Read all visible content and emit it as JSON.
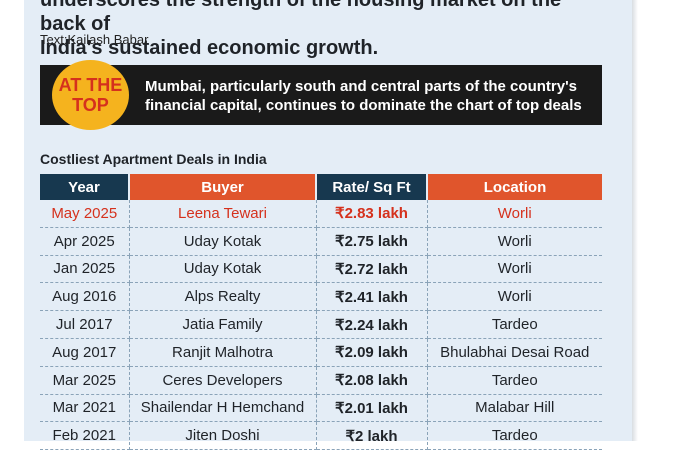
{
  "article": {
    "intro_line1": "underscores the strength of the housing market on the back of",
    "intro_line2": "India's sustained economic growth.",
    "credit": "Text:Kailash Babar"
  },
  "banner": {
    "badge_line1": "AT THE",
    "badge_line2": "TOP",
    "text": "Mumbai, particularly south and central parts of the country's financial capital, continues to dominate the chart of top deals"
  },
  "table": {
    "title": "Costliest Apartment Deals in India",
    "headers": {
      "year": "Year",
      "buyer": "Buyer",
      "rate": "Rate/ Sq Ft",
      "location": "Location"
    },
    "rows": [
      {
        "year": "May 2025",
        "buyer": "Leena Tewari",
        "rate": "₹2.83 lakh",
        "location": "Worli"
      },
      {
        "year": "Apr 2025",
        "buyer": "Uday Kotak",
        "rate": "₹2.75 lakh",
        "location": "Worli"
      },
      {
        "year": "Jan 2025",
        "buyer": "Uday Kotak",
        "rate": "₹2.72 lakh",
        "location": "Worli"
      },
      {
        "year": "Aug 2016",
        "buyer": "Alps Realty",
        "rate": "₹2.41 lakh",
        "location": "Worli"
      },
      {
        "year": "Jul 2017",
        "buyer": "Jatia Family",
        "rate": "₹2.24 lakh",
        "location": "Tardeo"
      },
      {
        "year": "Aug 2017",
        "buyer": "Ranjit Malhotra",
        "rate": "₹2.09 lakh",
        "location": "Bhulabhai Desai Road"
      },
      {
        "year": "Mar 2025",
        "buyer": "Ceres Developers",
        "rate": "₹2.08 lakh",
        "location": "Tardeo"
      },
      {
        "year": "Mar 2021",
        "buyer": "Shailendar H Hemchand",
        "rate": "₹2.01 lakh",
        "location": "Malabar Hill"
      },
      {
        "year": "Feb 2021",
        "buyer": "Jiten Doshi",
        "rate": "₹2 lakh",
        "location": "Tardeo"
      }
    ]
  },
  "colors": {
    "header_dark": "#17384f",
    "header_orange": "#e0552c",
    "highlight": "#d5311d",
    "badge": "#f5b31e",
    "panel": "#e4edf6"
  }
}
